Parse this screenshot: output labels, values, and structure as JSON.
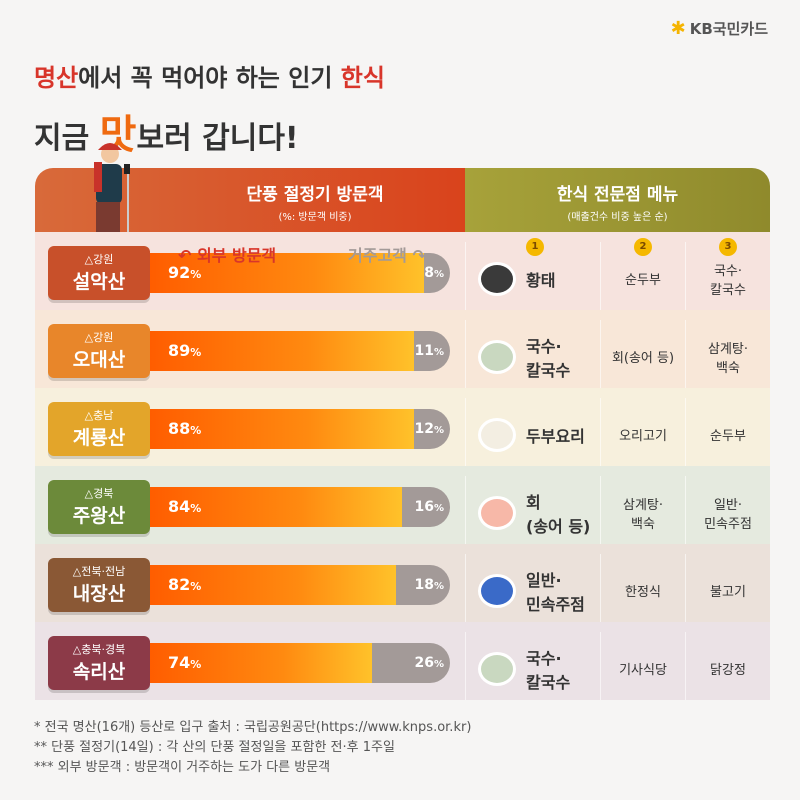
{
  "brand": "KB국민카드",
  "title_line1": {
    "a": "명산",
    "b": "에서 꼭 먹어야 하는 인기 ",
    "c": "한식"
  },
  "title_line2": {
    "a": "지금 ",
    "b": "맛",
    "c": "보러 갑니다!"
  },
  "left_header": {
    "title": "단풍 절정기 방문객",
    "subtitle": "(%: 방문객 비중)"
  },
  "right_header": {
    "title": "한식 전문점 메뉴",
    "subtitle": "(매출건수 비중 높은 순)"
  },
  "legend": {
    "external": "외부 방문객",
    "resident": "거주고객"
  },
  "ranks": [
    "1",
    "2",
    "3"
  ],
  "chart_data": {
    "type": "bar",
    "stacked": true,
    "orientation": "horizontal",
    "categories": [
      "설악산",
      "오대산",
      "계룡산",
      "주왕산",
      "내장산",
      "속리산"
    ],
    "series": [
      {
        "name": "외부 방문객",
        "values": [
          92,
          89,
          88,
          84,
          82,
          74
        ]
      },
      {
        "name": "거주고객",
        "values": [
          8,
          11,
          12,
          16,
          18,
          26
        ]
      }
    ],
    "unit": "%",
    "colors": {
      "external": "#ff6a00",
      "resident": "#a39a98"
    }
  },
  "rows": [
    {
      "region": "강원",
      "name": "설악산",
      "ext": "92",
      "res": "8",
      "color": "#c8502a",
      "bg": "#f6e3de",
      "menu": [
        "황태",
        "순두부",
        "국수·\n칼국수"
      ],
      "icon": "bowl-icon"
    },
    {
      "region": "강원",
      "name": "오대산",
      "ext": "89",
      "res": "11",
      "color": "#e8862a",
      "bg": "#f8e7d8",
      "menu": [
        "국수·\n칼국수",
        "회(송어 등)",
        "삼계탕·\n백숙"
      ],
      "icon": "noodle-icon"
    },
    {
      "region": "충남",
      "name": "계룡산",
      "ext": "88",
      "res": "12",
      "color": "#e3a52a",
      "bg": "#f7f0dd",
      "menu": [
        "두부요리",
        "오리고기",
        "순두부"
      ],
      "icon": "tofu-icon"
    },
    {
      "region": "경북",
      "name": "주왕산",
      "ext": "84",
      "res": "16",
      "color": "#6c8a3a",
      "bg": "#e5eadf",
      "menu": [
        "회\n(송어 등)",
        "삼계탕·\n백숙",
        "일반·\n민속주점"
      ],
      "icon": "sashimi-icon"
    },
    {
      "region": "전북·전남",
      "name": "내장산",
      "ext": "82",
      "res": "18",
      "color": "#8a5835",
      "bg": "#ebe1da",
      "menu": [
        "일반·\n민속주점",
        "한정식",
        "불고기"
      ],
      "icon": "bottle-icon"
    },
    {
      "region": "충북·경북",
      "name": "속리산",
      "ext": "74",
      "res": "26",
      "color": "#8c3a48",
      "bg": "#ebe2e6",
      "menu": [
        "국수·\n칼국수",
        "기사식당",
        "닭강정"
      ],
      "icon": "noodle-icon"
    }
  ],
  "notes": [
    "* 전국 명산(16개) 등산로 입구 출처 : 국립공원공단(https://www.knps.or.kr)",
    "** 단풍 절정기(14일) : 각 산의 단풍 절정일을 포함한 전·후 1주일",
    "*** 외부 방문객 : 방문객이 거주하는 도가 다른  방문객"
  ]
}
